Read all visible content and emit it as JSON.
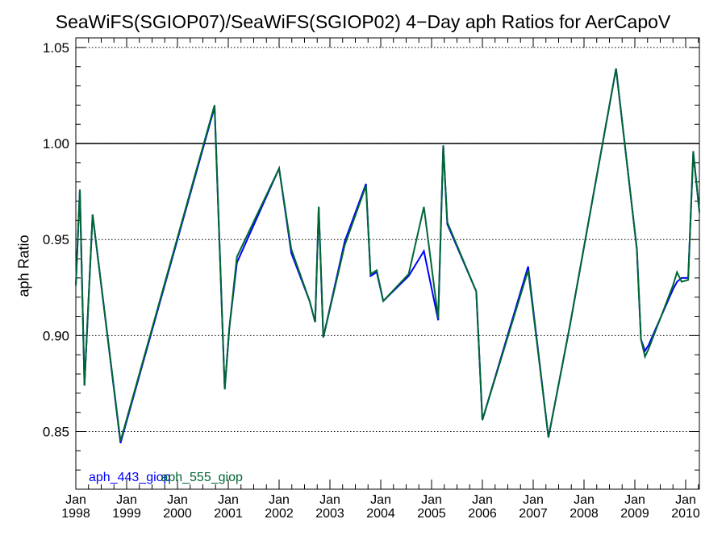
{
  "chart_data": {
    "type": "line",
    "title": "SeaWiFS(SGIOP07)/SeaWiFS(SGIOP02) 4−Day aph Ratios for AerCapoV",
    "xlabel": "",
    "ylabel": "aph Ratio",
    "xlim": [
      1998.0,
      2010.27
    ],
    "ylim": [
      0.82,
      1.055
    ],
    "yticks": [
      0.85,
      0.9,
      0.95,
      1.0,
      1.05
    ],
    "ytick_labels": [
      "0.85",
      "0.90",
      "0.95",
      "1.00",
      "1.05"
    ],
    "xticks": [
      {
        "x": 1998,
        "month": "Jan",
        "year": "1998"
      },
      {
        "x": 1999,
        "month": "Jan",
        "year": "1999"
      },
      {
        "x": 2000,
        "month": "Jan",
        "year": "2000"
      },
      {
        "x": 2001,
        "month": "Jan",
        "year": "2001"
      },
      {
        "x": 2002,
        "month": "Jan",
        "year": "2002"
      },
      {
        "x": 2003,
        "month": "Jan",
        "year": "2003"
      },
      {
        "x": 2004,
        "month": "Jan",
        "year": "2004"
      },
      {
        "x": 2005,
        "month": "Jan",
        "year": "2005"
      },
      {
        "x": 2006,
        "month": "Jan",
        "year": "2006"
      },
      {
        "x": 2007,
        "month": "Jan",
        "year": "2007"
      },
      {
        "x": 2008,
        "month": "Jan",
        "year": "2008"
      },
      {
        "x": 2009,
        "month": "Jan",
        "year": "2009"
      },
      {
        "x": 2010,
        "month": "Jan",
        "year": "2010"
      }
    ],
    "reference_line": 1.0,
    "grid": "dotted horizontal",
    "legend_position": "bottom-left",
    "series": [
      {
        "name": "aph_443_giop",
        "color": "#0000ff",
        "x": [
          1998.0,
          1998.08,
          1998.17,
          1998.33,
          1998.88,
          2000.73,
          2000.93,
          2001.02,
          2001.17,
          2002.0,
          2002.24,
          2002.6,
          2002.71,
          2002.78,
          2002.87,
          2003.29,
          2003.71,
          2003.8,
          2003.92,
          2004.05,
          2004.55,
          2004.85,
          2005.13,
          2005.23,
          2005.31,
          2005.88,
          2006.0,
          2006.9,
          2007.3,
          2007.72,
          2008.63,
          2009.04,
          2009.12,
          2009.2,
          2009.27,
          2009.75,
          2009.83,
          2009.92,
          2010.05,
          2010.15,
          2010.27
        ],
        "y": [
          0.926,
          0.976,
          0.874,
          0.963,
          0.844,
          1.019,
          0.872,
          0.904,
          0.938,
          0.987,
          0.943,
          0.918,
          0.907,
          0.967,
          0.899,
          0.949,
          0.979,
          0.931,
          0.933,
          0.918,
          0.931,
          0.944,
          0.908,
          0.999,
          0.958,
          0.923,
          0.856,
          0.936,
          0.847,
          0.905,
          1.039,
          0.945,
          0.898,
          0.892,
          0.895,
          0.924,
          0.928,
          0.93,
          0.93,
          0.995,
          0.965
        ]
      },
      {
        "name": "aph_555_giop",
        "color": "#006633",
        "x": [
          1998.0,
          1998.08,
          1998.17,
          1998.33,
          1998.88,
          2000.73,
          2000.93,
          2001.02,
          2001.17,
          2002.0,
          2002.24,
          2002.6,
          2002.71,
          2002.78,
          2002.87,
          2003.29,
          2003.71,
          2003.8,
          2003.92,
          2004.05,
          2004.55,
          2004.85,
          2005.13,
          2005.23,
          2005.31,
          2005.88,
          2006.0,
          2006.9,
          2007.3,
          2007.72,
          2008.63,
          2009.04,
          2009.12,
          2009.2,
          2009.27,
          2009.75,
          2009.83,
          2009.92,
          2010.05,
          2010.15,
          2010.27
        ],
        "y": [
          0.926,
          0.976,
          0.874,
          0.963,
          0.845,
          1.02,
          0.872,
          0.904,
          0.941,
          0.987,
          0.945,
          0.918,
          0.907,
          0.967,
          0.899,
          0.947,
          0.978,
          0.932,
          0.934,
          0.918,
          0.932,
          0.967,
          0.909,
          0.999,
          0.959,
          0.923,
          0.856,
          0.934,
          0.847,
          0.905,
          1.039,
          0.945,
          0.898,
          0.889,
          0.893,
          0.926,
          0.933,
          0.928,
          0.929,
          0.996,
          0.964
        ]
      }
    ]
  }
}
